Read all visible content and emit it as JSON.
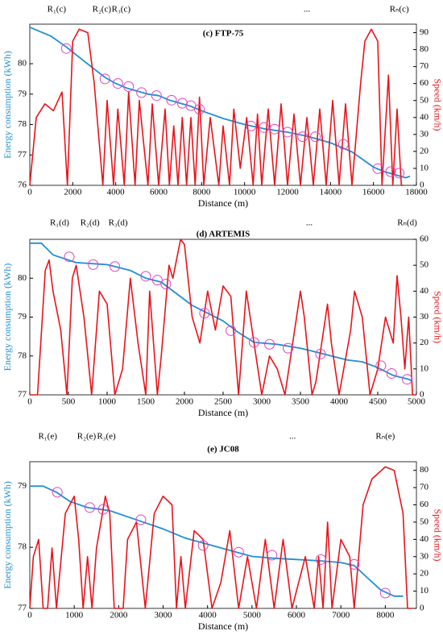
{
  "chart_data": [
    {
      "type": "line",
      "title": "(c) FTP-75",
      "xlabel": "Distance (m)",
      "ylabel": "Energy consumption (kWh)",
      "y2label": "Speed (km/h)",
      "annotations": [
        "R₁(c)",
        "R₂(c)",
        "R₃(c)",
        "...",
        "Rₙ(c)"
      ],
      "xlim": [
        0,
        18000
      ],
      "xticks": [
        0,
        2000,
        4000,
        6000,
        8000,
        10000,
        12000,
        14000,
        16000,
        18000
      ],
      "ylim": [
        76,
        81.3
      ],
      "yticks": [
        76,
        77,
        78,
        79,
        80
      ],
      "y2lim": [
        0,
        95
      ],
      "y2ticks": [
        0,
        10,
        20,
        30,
        40,
        50,
        60,
        70,
        80,
        90
      ],
      "series": [
        {
          "type": "line",
          "color": "#1f8fd6",
          "x": [
            0,
            1000,
            1700,
            2500,
            3500,
            4000,
            4500,
            5000,
            5500,
            6000,
            6500,
            7000,
            7500,
            8000,
            9000,
            10000,
            11000,
            12000,
            13000,
            14000,
            14500,
            15000,
            15500,
            16000,
            16500,
            17000,
            17500,
            17700
          ],
          "values": [
            81.2,
            80.9,
            80.55,
            80.1,
            79.55,
            79.35,
            79.2,
            79.1,
            79.0,
            78.95,
            78.8,
            78.7,
            78.6,
            78.45,
            78.2,
            78.0,
            77.85,
            77.75,
            77.6,
            77.4,
            77.25,
            77.1,
            76.85,
            76.6,
            76.45,
            76.35,
            76.25,
            76.3
          ]
        },
        {
          "type": "line",
          "axis": "y2",
          "color": "#e8141b",
          "x": [
            0,
            300,
            700,
            1100,
            1500,
            1750,
            2000,
            2300,
            2700,
            3000,
            3400,
            3600,
            3900,
            4100,
            4400,
            4600,
            4900,
            5100,
            5300,
            5500,
            5700,
            6000,
            6300,
            6500,
            6700,
            6900,
            7100,
            7300,
            7500,
            7700,
            7900,
            8100,
            8400,
            8800,
            9000,
            9300,
            9500,
            9800,
            10100,
            10400,
            10600,
            10800,
            11100,
            11400,
            11700,
            12000,
            12300,
            12600,
            12900,
            13200,
            13500,
            13800,
            14100,
            14400,
            14700,
            15000,
            15400,
            15600,
            15900,
            16200,
            16400,
            16700,
            16900,
            17100,
            17300,
            17400
          ],
          "values": [
            0,
            40,
            48,
            44,
            55,
            0,
            85,
            92,
            90,
            60,
            0,
            50,
            0,
            45,
            0,
            55,
            0,
            50,
            25,
            0,
            48,
            0,
            45,
            0,
            35,
            0,
            40,
            0,
            40,
            0,
            52,
            0,
            40,
            0,
            35,
            0,
            45,
            10,
            40,
            0,
            42,
            0,
            45,
            0,
            48,
            0,
            42,
            0,
            40,
            0,
            45,
            0,
            50,
            0,
            48,
            0,
            60,
            85,
            92,
            85,
            0,
            65,
            0,
            45,
            0,
            0
          ]
        },
        {
          "type": "scatter",
          "color": "#e040c0",
          "x": [
            1700,
            3500,
            4100,
            4600,
            5200,
            5900,
            6600,
            7100,
            7500,
            7900,
            10300,
            10900,
            11400,
            12000,
            12700,
            13300,
            14600,
            16200,
            16800,
            17200
          ],
          "values": [
            80.5,
            79.5,
            79.35,
            79.25,
            79.05,
            78.95,
            78.8,
            78.7,
            78.62,
            78.5,
            77.95,
            77.9,
            77.85,
            77.75,
            77.6,
            77.6,
            77.35,
            76.55,
            76.45,
            76.4
          ]
        }
      ]
    },
    {
      "type": "line",
      "title": "(d) ARTEMIS",
      "xlabel": "Distance (m)",
      "ylabel": "Energy consumption (kWh)",
      "y2label": "Speed (km/h)",
      "annotations": [
        "R₁(d)",
        "R₂(d)",
        "R₃(d)",
        "...",
        "Rₙ(d)"
      ],
      "xlim": [
        0,
        5000
      ],
      "xticks": [
        0,
        500,
        1000,
        1500,
        2000,
        2500,
        3000,
        3500,
        4000,
        4500,
        5000
      ],
      "ylim": [
        77,
        81
      ],
      "yticks": [
        77,
        78,
        79,
        80
      ],
      "y2lim": [
        0,
        60
      ],
      "y2ticks": [
        0,
        10,
        20,
        30,
        40,
        50,
        60
      ],
      "series": [
        {
          "type": "line",
          "color": "#1f8fd6",
          "x": [
            0,
            150,
            300,
            600,
            1000,
            1300,
            1500,
            1700,
            1900,
            2100,
            2300,
            2500,
            2700,
            2900,
            3200,
            3500,
            3700,
            3900,
            4100,
            4300,
            4500,
            4700,
            4900,
            4950
          ],
          "values": [
            80.9,
            80.9,
            80.6,
            80.4,
            80.35,
            80.2,
            80.0,
            79.9,
            79.6,
            79.3,
            79.1,
            78.9,
            78.6,
            78.35,
            78.3,
            78.2,
            78.1,
            78.0,
            77.9,
            77.85,
            77.7,
            77.5,
            77.4,
            77.35
          ]
        },
        {
          "type": "line",
          "axis": "y2",
          "color": "#e8141b",
          "x": [
            0,
            100,
            200,
            250,
            300,
            400,
            480,
            550,
            600,
            700,
            800,
            900,
            1000,
            1100,
            1200,
            1300,
            1400,
            1500,
            1550,
            1650,
            1700,
            1800,
            1850,
            1950,
            2000,
            2100,
            2200,
            2300,
            2400,
            2500,
            2600,
            2700,
            2800,
            2900,
            3000,
            3100,
            3200,
            3300,
            3500,
            3550,
            3650,
            3700,
            3850,
            3900,
            4000,
            4150,
            4200,
            4300,
            4400,
            4500,
            4600,
            4700,
            4750,
            4800,
            4850,
            4900,
            4950,
            5000
          ],
          "values": [
            0,
            0,
            48,
            52,
            40,
            25,
            0,
            45,
            50,
            30,
            0,
            40,
            35,
            0,
            10,
            45,
            20,
            0,
            40,
            0,
            15,
            50,
            45,
            60,
            58,
            30,
            20,
            40,
            25,
            42,
            38,
            0,
            40,
            20,
            0,
            15,
            10,
            0,
            40,
            30,
            0,
            5,
            35,
            20,
            0,
            25,
            40,
            30,
            0,
            10,
            30,
            20,
            46,
            30,
            10,
            30,
            0,
            0
          ]
        },
        {
          "type": "scatter",
          "color": "#e040c0",
          "x": [
            510,
            820,
            1100,
            1500,
            1650,
            1760,
            2260,
            2600,
            2900,
            3100,
            3340,
            3760,
            4540,
            4680,
            4880
          ],
          "values": [
            80.55,
            80.35,
            80.3,
            80.05,
            79.95,
            79.85,
            79.1,
            78.65,
            78.35,
            78.3,
            78.2,
            78.05,
            77.75,
            77.55,
            77.4
          ]
        }
      ]
    },
    {
      "type": "line",
      "title": "(e) JC08",
      "xlabel": "Distance (m)",
      "ylabel": "Energy consumption (kWh)",
      "y2label": "Speed (km/h)",
      "annotations": [
        "R₁(e)",
        "R₂(e)",
        "R₃(e)",
        "...",
        "Rₙ(e)"
      ],
      "xlim": [
        0,
        8700
      ],
      "xticks": [
        0,
        1000,
        2000,
        3000,
        4000,
        5000,
        6000,
        7000,
        8000
      ],
      "ylim": [
        77,
        79.4
      ],
      "yticks": [
        77,
        78,
        79
      ],
      "y2lim": [
        0,
        85
      ],
      "y2ticks": [
        0,
        10,
        20,
        30,
        40,
        50,
        60,
        70,
        80
      ],
      "series": [
        {
          "type": "line",
          "color": "#1f8fd6",
          "x": [
            0,
            300,
            600,
            900,
            1300,
            1800,
            2200,
            2600,
            3000,
            3500,
            4000,
            4500,
            5000,
            5500,
            6000,
            6500,
            7000,
            7300,
            7600,
            7900,
            8200,
            8400
          ],
          "values": [
            79.0,
            79.0,
            78.9,
            78.75,
            78.65,
            78.6,
            78.5,
            78.4,
            78.3,
            78.15,
            78.05,
            77.95,
            77.85,
            77.82,
            77.8,
            77.78,
            77.75,
            77.7,
            77.5,
            77.3,
            77.2,
            77.2
          ]
        },
        {
          "type": "line",
          "axis": "y2",
          "color": "#e8141b",
          "x": [
            0,
            80,
            200,
            300,
            400,
            500,
            600,
            800,
            1000,
            1100,
            1200,
            1300,
            1400,
            1500,
            1700,
            1800,
            1900,
            2100,
            2200,
            2400,
            2600,
            2800,
            3000,
            3200,
            3300,
            3400,
            3500,
            3700,
            3900,
            4100,
            4300,
            4500,
            4700,
            4900,
            5100,
            5300,
            5500,
            5700,
            5900,
            6200,
            6400,
            6500,
            6600,
            6700,
            6800,
            7000,
            7200,
            7300,
            7500,
            7700,
            8000,
            8200,
            8400,
            8500,
            8600
          ],
          "values": [
            0,
            30,
            40,
            0,
            0,
            35,
            0,
            55,
            65,
            40,
            0,
            30,
            0,
            35,
            65,
            55,
            0,
            0,
            40,
            50,
            0,
            55,
            65,
            60,
            0,
            30,
            0,
            45,
            40,
            0,
            15,
            45,
            0,
            30,
            0,
            40,
            0,
            40,
            0,
            30,
            0,
            30,
            0,
            50,
            0,
            40,
            30,
            0,
            60,
            75,
            82,
            80,
            55,
            0,
            0
          ]
        },
        {
          "type": "scatter",
          "color": "#e040c0",
          "x": [
            620,
            1350,
            1650,
            2500,
            3900,
            4700,
            5450,
            6550,
            7300,
            8000
          ],
          "values": [
            78.9,
            78.65,
            78.62,
            78.45,
            78.03,
            77.92,
            77.87,
            77.8,
            77.72,
            77.25
          ]
        }
      ]
    }
  ]
}
